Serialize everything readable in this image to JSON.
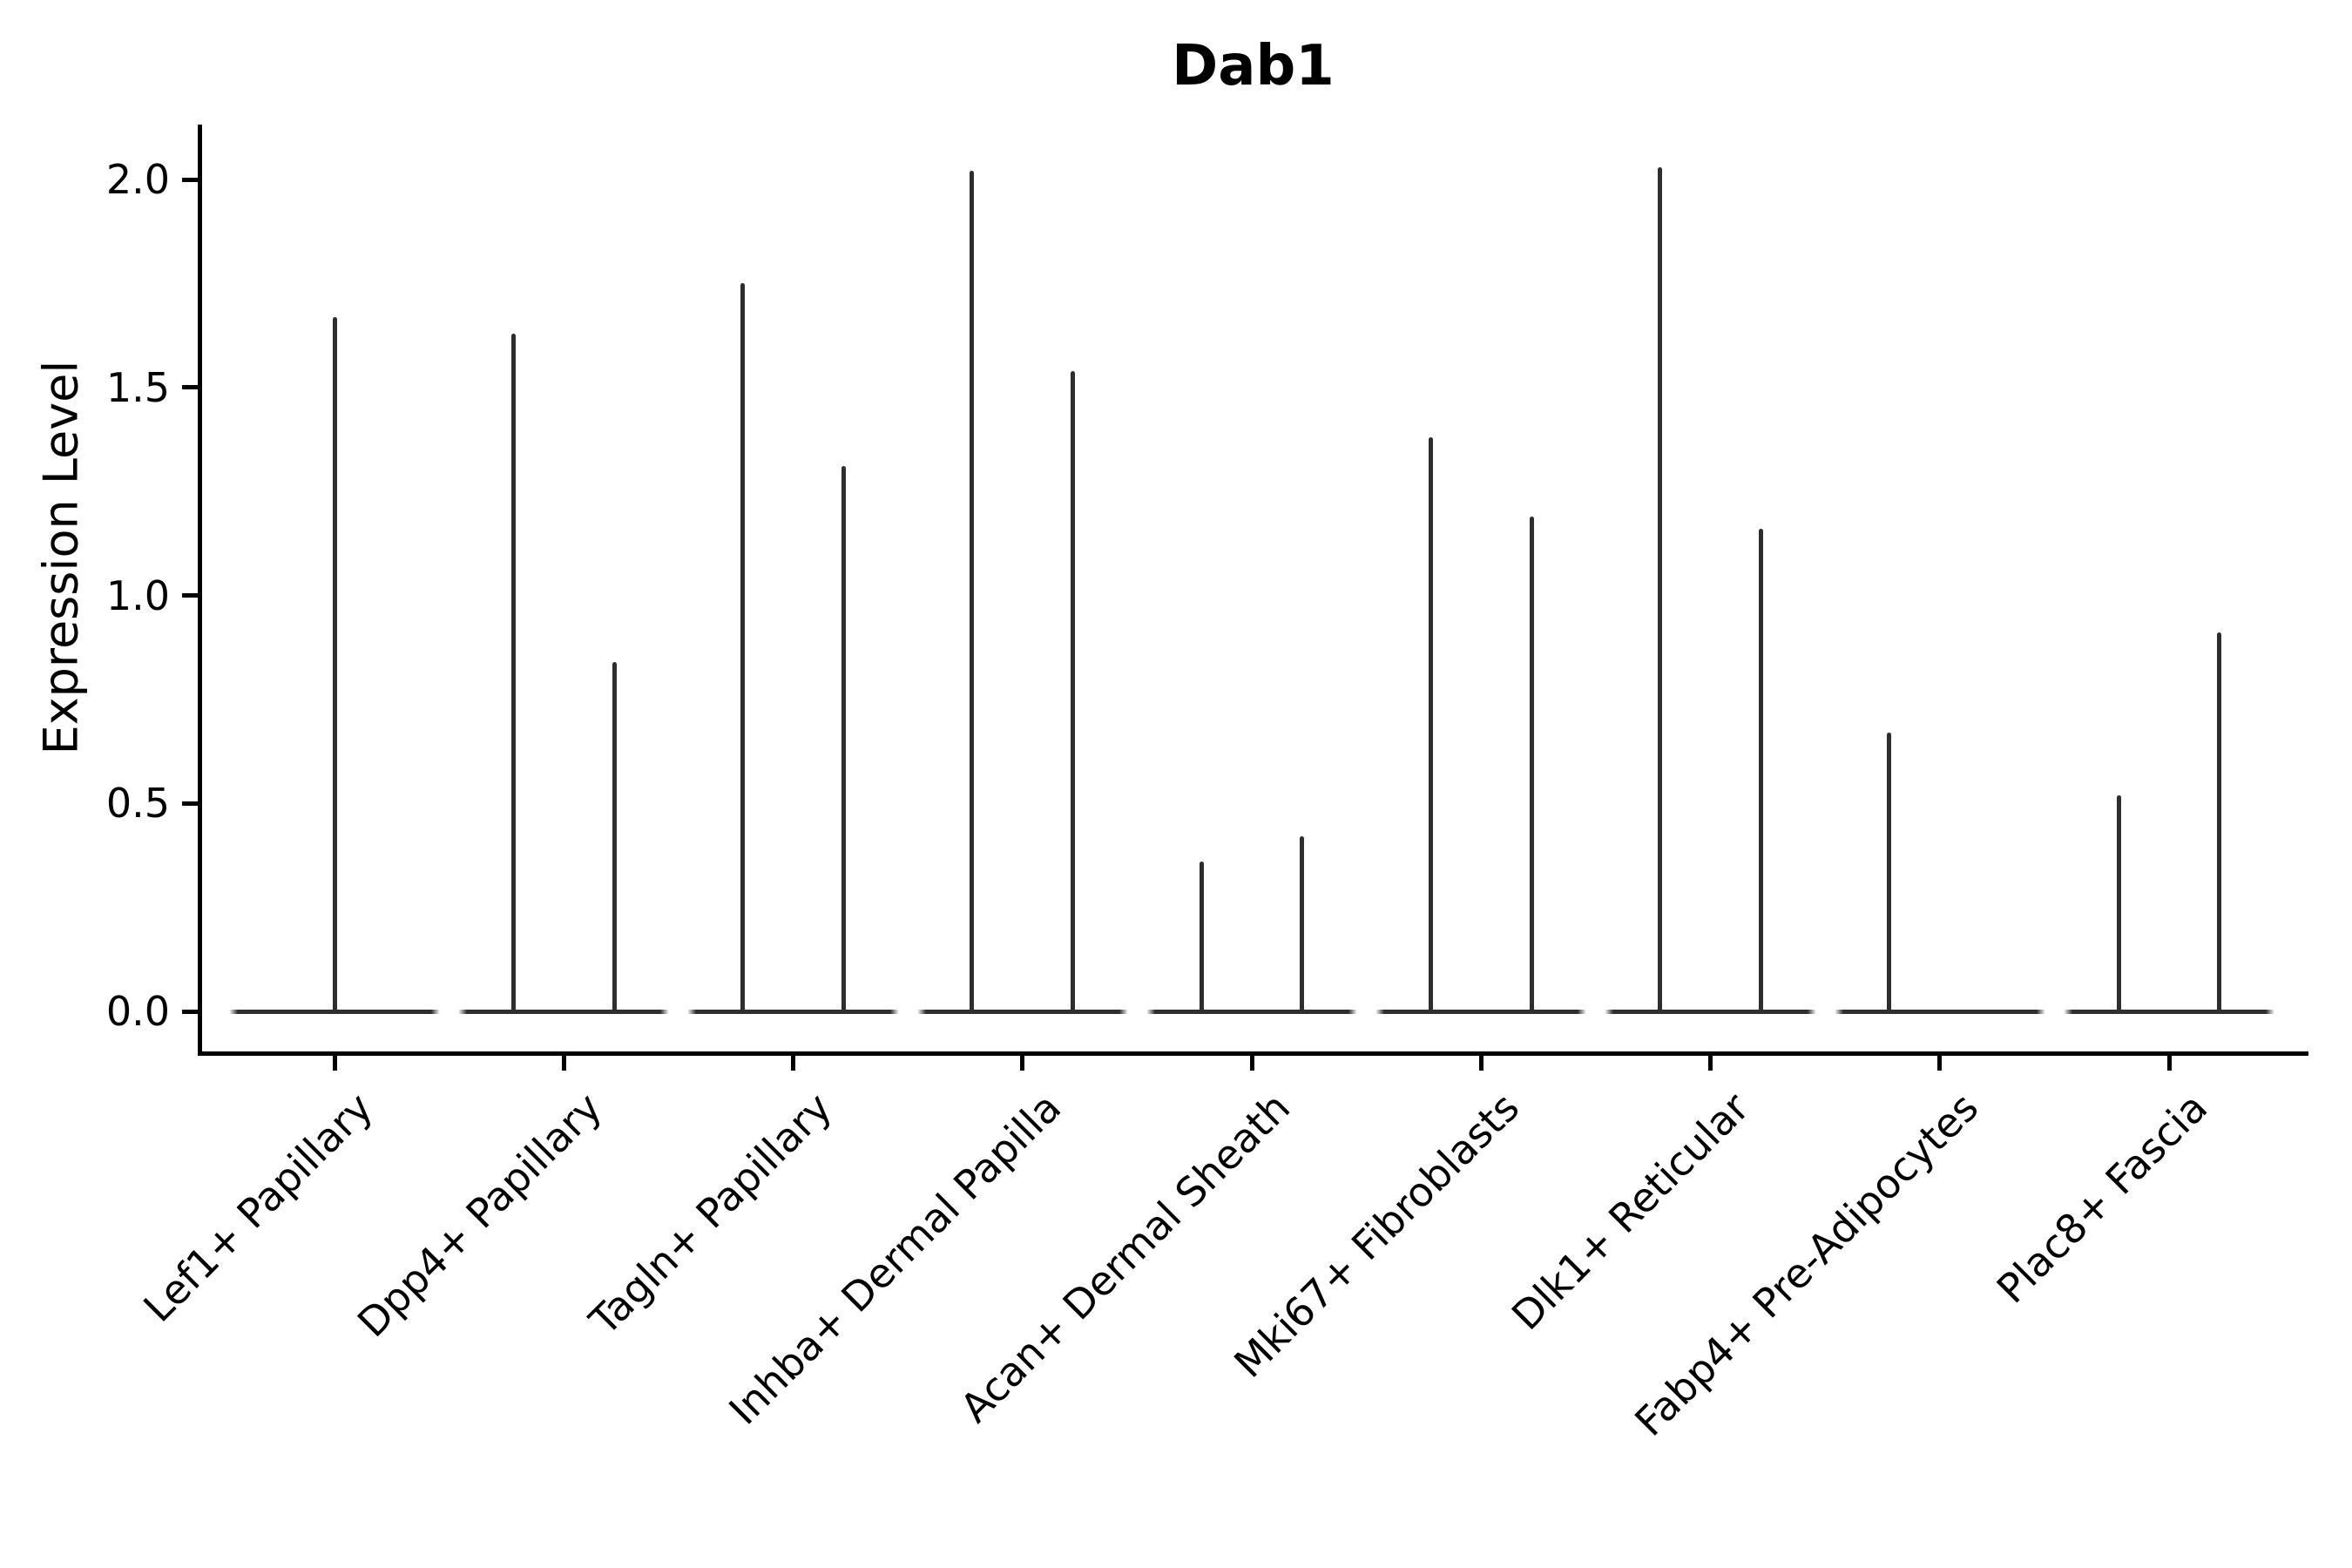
{
  "title": "Dab1",
  "y_axis": {
    "label": "Expression Level",
    "tick_labels": [
      "0.0",
      "0.5",
      "1.0",
      "1.5",
      "2.0"
    ],
    "tick_values": [
      0.0,
      0.5,
      1.0,
      1.5,
      2.0
    ]
  },
  "x_axis": {
    "categories": [
      "Lef1+ Papillary",
      "Dpp4+ Papillary",
      "Tagln+ Papillary",
      "Inhba+ Dermal Papilla",
      "Acan+ Dermal Sheath",
      "Mki67+ Fibroblasts",
      "Dlk1+ Reticular",
      "Fabp4+ Pre-Adipocytes",
      "Plac8+ Fascia"
    ]
  },
  "colors": {
    "violin": "#2e2e2e",
    "axis": "#000000",
    "text": "#000000",
    "background": "#ffffff"
  },
  "chart_data": {
    "type": "violin",
    "title": "Dab1",
    "xlabel": "",
    "ylabel": "Expression Level",
    "ylim": [
      -0.1,
      2.13
    ],
    "yticks": [
      0.0,
      0.5,
      1.0,
      1.5,
      2.0
    ],
    "grid": false,
    "legend": null,
    "baseline_value": 0.0,
    "baseline_halfwidth_units": 0.46,
    "categories": [
      "Lef1+ Papillary",
      "Dpp4+ Papillary",
      "Tagln+ Papillary",
      "Inhba+ Dermal Papilla",
      "Acan+ Dermal Sheath",
      "Mki67+ Fibroblasts",
      "Dlk1+ Reticular",
      "Fabp4+ Pre-Adipocytes",
      "Plac8+ Fascia"
    ],
    "violins": [
      {
        "category": "Lef1+ Papillary",
        "spikes": [
          {
            "offset": 0.0,
            "max": 1.67
          }
        ]
      },
      {
        "category": "Dpp4+ Papillary",
        "spikes": [
          {
            "offset": -0.22,
            "max": 1.63
          },
          {
            "offset": 0.22,
            "max": 0.84
          }
        ]
      },
      {
        "category": "Tagln+ Papillary",
        "spikes": [
          {
            "offset": -0.22,
            "max": 1.75
          },
          {
            "offset": 0.22,
            "max": 1.31
          }
        ]
      },
      {
        "category": "Inhba+ Dermal Papilla",
        "spikes": [
          {
            "offset": -0.22,
            "max": 2.02
          },
          {
            "offset": 0.22,
            "max": 1.54
          }
        ]
      },
      {
        "category": "Acan+ Dermal Sheath",
        "spikes": [
          {
            "offset": -0.22,
            "max": 0.36
          },
          {
            "offset": 0.22,
            "max": 0.42
          }
        ]
      },
      {
        "category": "Mki67+ Fibroblasts",
        "spikes": [
          {
            "offset": -0.22,
            "max": 1.38
          },
          {
            "offset": 0.22,
            "max": 1.19
          }
        ]
      },
      {
        "category": "Dlk1+ Reticular",
        "spikes": [
          {
            "offset": -0.22,
            "max": 2.03
          },
          {
            "offset": 0.22,
            "max": 1.16
          }
        ]
      },
      {
        "category": "Fabp4+ Pre-Adipocytes",
        "spikes": [
          {
            "offset": -0.22,
            "max": 0.67
          }
        ]
      },
      {
        "category": "Plac8+ Fascia",
        "spikes": [
          {
            "offset": -0.22,
            "max": 0.52
          },
          {
            "offset": 0.22,
            "max": 0.91
          }
        ]
      }
    ]
  }
}
